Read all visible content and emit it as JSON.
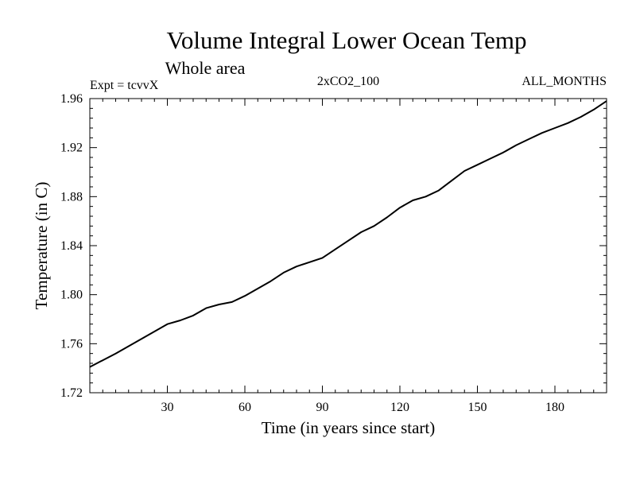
{
  "chart_data": {
    "type": "line",
    "title": "Volume Integral Lower Ocean Temp",
    "subtitle": "Whole area",
    "annotations": {
      "left": "Expt = tcvvX",
      "center": "2xCO2_100",
      "right": "ALL_MONTHS"
    },
    "xlabel": "Time (in years since start)",
    "ylabel": "Temperature (in C)",
    "xlim": [
      0,
      200
    ],
    "ylim": [
      1.72,
      1.96
    ],
    "xticks": [
      30,
      60,
      90,
      120,
      150,
      180
    ],
    "xtick_labels": [
      "30",
      "60",
      "90",
      "120",
      "150",
      "180"
    ],
    "yticks": [
      1.72,
      1.76,
      1.8,
      1.84,
      1.88,
      1.92,
      1.96
    ],
    "ytick_labels": [
      "1.72",
      "1.76",
      "1.80",
      "1.84",
      "1.88",
      "1.92",
      "1.96"
    ],
    "grid": false,
    "series": [
      {
        "color": "#000000",
        "x": [
          0,
          10,
          20,
          30,
          35,
          40,
          45,
          50,
          55,
          60,
          70,
          75,
          80,
          90,
          95,
          100,
          105,
          110,
          115,
          120,
          125,
          130,
          135,
          140,
          145,
          150,
          155,
          160,
          165,
          170,
          175,
          180,
          185,
          190,
          195,
          200
        ],
        "y": [
          1.741,
          1.752,
          1.764,
          1.776,
          1.779,
          1.783,
          1.789,
          1.792,
          1.794,
          1.799,
          1.811,
          1.818,
          1.823,
          1.83,
          1.837,
          1.844,
          1.851,
          1.856,
          1.863,
          1.871,
          1.877,
          1.88,
          1.885,
          1.893,
          1.901,
          1.906,
          1.911,
          1.916,
          1.922,
          1.927,
          1.932,
          1.936,
          1.94,
          1.945,
          1.951,
          1.958
        ]
      }
    ]
  }
}
